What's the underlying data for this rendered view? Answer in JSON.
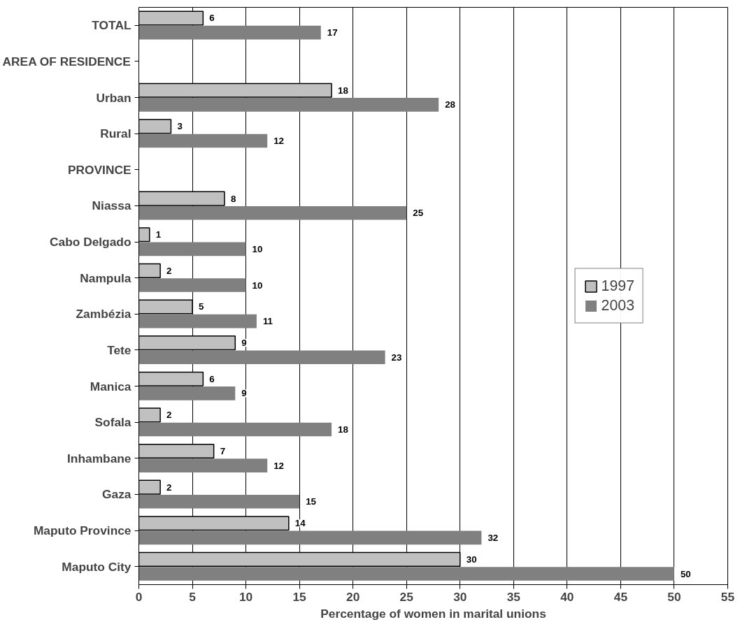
{
  "chart_data": {
    "type": "bar",
    "orientation": "horizontal",
    "xlabel": "Percentage of women in marital unions",
    "categories": [
      "TOTAL",
      "AREA OF RESIDENCE",
      "Urban",
      "Rural",
      "PROVINCE",
      "Niassa",
      "Cabo Delgado",
      "Nampula",
      "Zambézia",
      "Tete",
      "Manica",
      "Sofala",
      "Inhambane",
      "Gaza",
      "Maputo Province",
      "Maputo City"
    ],
    "series": [
      {
        "name": "1997",
        "color": "#c0c0c0",
        "values": [
          6,
          null,
          18,
          3,
          null,
          8,
          1,
          2,
          5,
          9,
          6,
          2,
          7,
          2,
          14,
          30
        ]
      },
      {
        "name": "2003",
        "color": "#808080",
        "values": [
          17,
          null,
          28,
          12,
          null,
          25,
          10,
          10,
          11,
          23,
          9,
          18,
          12,
          15,
          32,
          50
        ]
      }
    ],
    "xlim": [
      0,
      55
    ],
    "xticks": [
      0,
      5,
      10,
      15,
      20,
      25,
      30,
      35,
      40,
      45,
      50,
      55
    ],
    "grid": "x",
    "legend": "right",
    "data_labels": true
  }
}
